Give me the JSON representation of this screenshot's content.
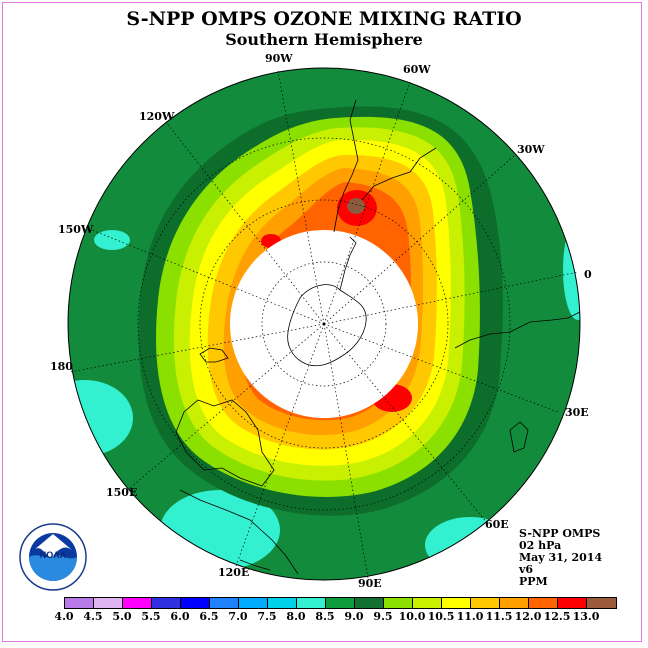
{
  "title": "S-NPP OMPS OZONE MIXING RATIO",
  "subtitle": "Southern Hemisphere",
  "longitude_labels": {
    "w90": "90W",
    "w60": "60W",
    "w30": "30W",
    "e0": "0",
    "w120": "120W",
    "w150": "150W",
    "d180": "180",
    "e150": "150E",
    "e120": "120E",
    "e90": "90E",
    "e60": "60E",
    "e30": "30E"
  },
  "info": {
    "instrument": "S-NPP OMPS",
    "level": "02 hPa",
    "date": "May 31, 2014",
    "version": "v6",
    "units": "PPM"
  },
  "logo": {
    "name": "noaa-logo",
    "text": "NOAA",
    "ring_text": "NATIONAL OCEANIC AND ATMOSPHERIC ADMINISTRATION · U.S. DEPARTMENT OF COMMERCE"
  },
  "colorbar": {
    "colors": [
      "#b77ae8",
      "#e0b4f0",
      "#ff00ff",
      "#3030e0",
      "#0000ff",
      "#1e82ff",
      "#00aaff",
      "#00d0e8",
      "#33f0d0",
      "#0f9c3c",
      "#127030",
      "#8ce000",
      "#c8f000",
      "#ffff00",
      "#ffc800",
      "#ffa000",
      "#ff6400",
      "#ff0000",
      "#9c5a3c"
    ],
    "ticks": [
      "4.0",
      "4.5",
      "5.0",
      "5.5",
      "6.0",
      "6.5",
      "7.0",
      "7.5",
      "8.0",
      "8.5",
      "9.0",
      "9.5",
      "10.0",
      "10.5",
      "11.0",
      "11.5",
      "12.0",
      "12.5",
      "13.0"
    ]
  },
  "field_colors": {
    "outer": "#128c3c",
    "dark": "#0d6e2c",
    "c95": "#8ce000",
    "c100": "#c8f000",
    "c105": "#ffff00",
    "c110": "#ffc800",
    "c115": "#ffa000",
    "c120": "#ff6400",
    "c125": "#ff0000",
    "c130": "#8c5a3c",
    "low": "#33f0d0",
    "nodata": "#ffffff"
  }
}
